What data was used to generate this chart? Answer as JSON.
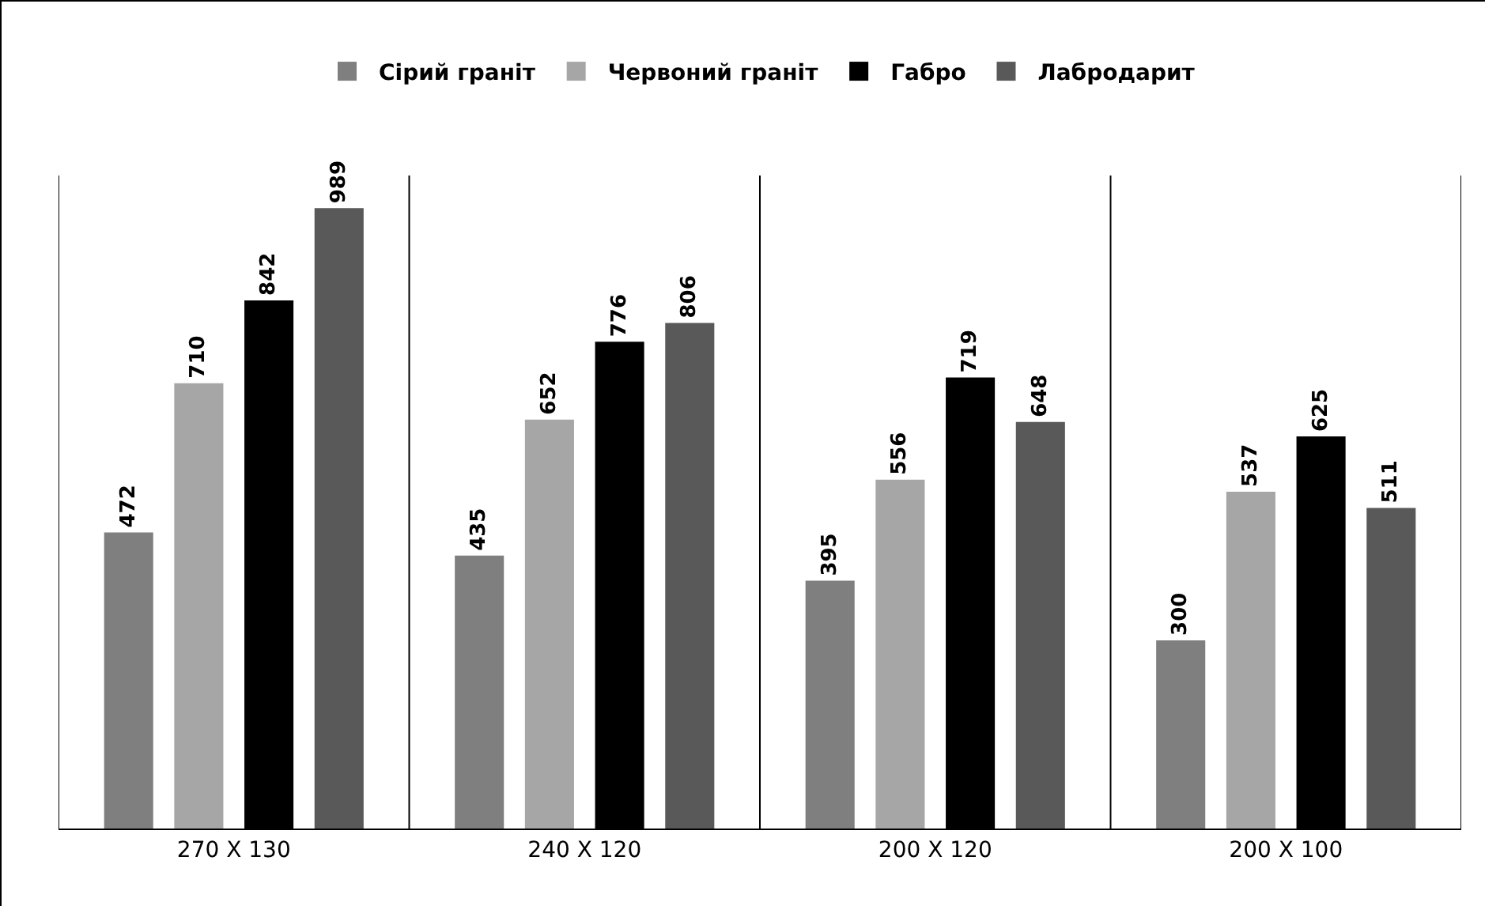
{
  "chart_data": {
    "type": "bar",
    "categories": [
      "270 X 130",
      "240 X 120",
      "200 X 120",
      "200 X 100"
    ],
    "series": [
      {
        "name": "Сірий граніт",
        "color": "#7f7f7f",
        "values": [
          472,
          435,
          395,
          300
        ]
      },
      {
        "name": "Червоний граніт",
        "color": "#a6a6a6",
        "values": [
          710,
          652,
          556,
          537
        ]
      },
      {
        "name": "Габро",
        "color": "#000000",
        "values": [
          842,
          776,
          719,
          625
        ]
      },
      {
        "name": "Лабродарит",
        "color": "#595959",
        "values": [
          989,
          806,
          648,
          511
        ]
      }
    ],
    "data_labels": true,
    "grid": "x",
    "legend": "top"
  }
}
